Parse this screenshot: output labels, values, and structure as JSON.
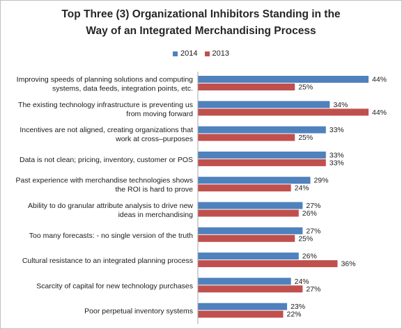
{
  "chart_data": {
    "type": "bar",
    "orientation": "horizontal",
    "title": "Top Three (3) Organizational Inhibitors Standing in the Way of an Integrated Merchandising Process",
    "title_lines": [
      "Top Three (3) Organizational Inhibitors Standing in the",
      "Way of an Integrated Merchandising Process"
    ],
    "legend_position": "top",
    "grid": false,
    "xlim": [
      0,
      45
    ],
    "value_suffix": "%",
    "categories": [
      [
        "Improving speeds of planning solutions and computing",
        "systems, data feeds, integration points, etc."
      ],
      [
        "The existing technology infrastructure is preventing us",
        "from moving forward"
      ],
      [
        "Incentives are not aligned, creating organizations that",
        "work at cross–purposes"
      ],
      [
        "Data is not clean; pricing, inventory, customer or POS"
      ],
      [
        "Past experience with merchandise technologies shows",
        "the ROI is hard to prove"
      ],
      [
        "Ability to do granular attribute analysis to drive new",
        "ideas in merchandising"
      ],
      [
        "Too many forecasts:  - no single version of the truth"
      ],
      [
        "Cultural resistance to an integrated planning process"
      ],
      [
        "Scarcity of capital for new technology purchases"
      ],
      [
        "Poor perpetual inventory systems"
      ]
    ],
    "series": [
      {
        "name": "2014",
        "color": "#4f81bd",
        "values": [
          44,
          34,
          33,
          33,
          29,
          27,
          27,
          26,
          24,
          23
        ]
      },
      {
        "name": "2013",
        "color": "#c0504d",
        "values": [
          25,
          44,
          25,
          33,
          24,
          26,
          25,
          36,
          27,
          22
        ]
      }
    ]
  }
}
